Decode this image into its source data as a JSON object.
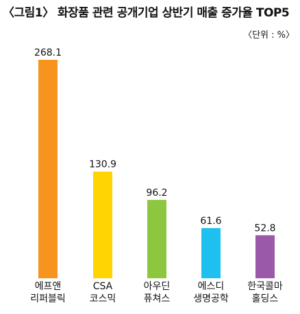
{
  "title": "〈그림1〉 화장품 관련 공개기업 상반기 매출 증가율 TOP5",
  "unit_label": "〈단위 : %〉",
  "chart_data": {
    "type": "bar",
    "categories": [
      [
        "에프앤",
        "리퍼블릭"
      ],
      [
        "CSA",
        "코스믹"
      ],
      [
        "아우딘",
        "퓨쳐스"
      ],
      [
        "에스디",
        "생명공학"
      ],
      [
        "한국콜마",
        "홀딩스"
      ]
    ],
    "values": [
      268.1,
      130.9,
      96.2,
      61.6,
      52.8
    ],
    "value_labels": [
      "268.1",
      "130.9",
      "96.2",
      "61.6",
      "52.8"
    ],
    "colors": [
      "#F7941D",
      "#FFD400",
      "#8DC63F",
      "#1EC0F0",
      "#9B59A9"
    ],
    "title": "〈그림1〉 화장품 관련 공개기업 상반기 매출 증가율 TOP5",
    "xlabel": "",
    "ylabel": "",
    "ylim": [
      0,
      268.1
    ],
    "grid": false,
    "legend": "none"
  }
}
